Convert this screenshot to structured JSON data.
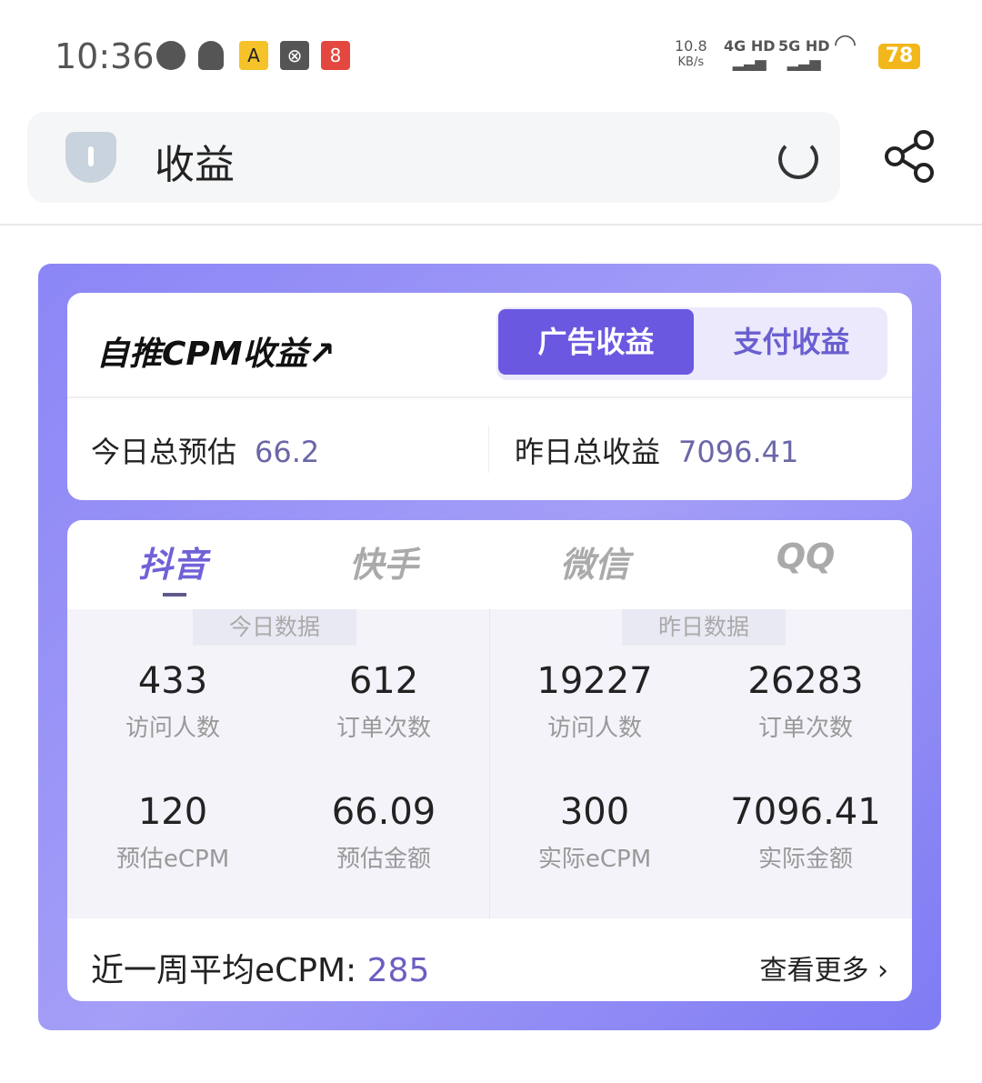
{
  "status": {
    "time": "10:36",
    "speed": "10.8",
    "speed_unit": "KB/s",
    "net1": "4G HD",
    "net2": "5G HD",
    "battery": "78"
  },
  "header": {
    "title": "收益"
  },
  "card": {
    "logo": "自推CPM收益↗",
    "seg_ad": "广告收益",
    "seg_pay": "支付收益",
    "today_label": "今日总预估",
    "today_value": "66.2",
    "yesterday_label": "昨日总收益",
    "yesterday_value": "7096.41"
  },
  "tabs": [
    {
      "label": "抖音",
      "active": true
    },
    {
      "label": "快手"
    },
    {
      "label": "微信"
    },
    {
      "label": "QQ"
    }
  ],
  "today": {
    "title": "今日数据",
    "stats": [
      {
        "value": "433",
        "label": "访问人数"
      },
      {
        "value": "612",
        "label": "订单次数"
      },
      {
        "value": "120",
        "label": "预估eCPM"
      },
      {
        "value": "66.09",
        "label": "预估金额"
      }
    ]
  },
  "yesterday": {
    "title": "昨日数据",
    "stats": [
      {
        "value": "19227",
        "label": "访问人数"
      },
      {
        "value": "26283",
        "label": "订单次数"
      },
      {
        "value": "300",
        "label": "实际eCPM"
      },
      {
        "value": "7096.41",
        "label": "实际金额"
      }
    ]
  },
  "footer": {
    "label": "近一周平均eCPM: ",
    "value": "285",
    "more": "查看更多 ›"
  }
}
